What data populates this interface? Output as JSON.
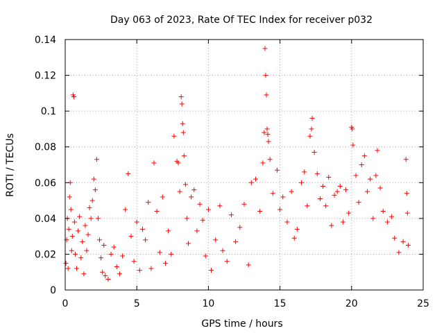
{
  "chart_data": {
    "type": "scatter",
    "title": "Day 063 of 2023, Rate Of TEC Index for receiver p032",
    "xlabel": "GPS time / hours",
    "ylabel": "ROTI / TECUs",
    "xlim": [
      0,
      25
    ],
    "ylim": [
      0,
      0.14
    ],
    "xticks": [
      0,
      5,
      10,
      15,
      20,
      25
    ],
    "yticks": [
      0,
      0.02,
      0.04,
      0.06,
      0.08,
      0.1,
      0.12,
      0.14
    ],
    "xtick_labels": [
      "0",
      "5",
      "10",
      "15",
      "20",
      "25"
    ],
    "ytick_labels": [
      "0",
      "0.02",
      "0.04",
      "0.06",
      "0.08",
      "0.1",
      "0.12",
      "0.14"
    ],
    "grid": true,
    "marker": "+",
    "series": [
      {
        "color": "#ff0000",
        "points": [
          [
            0.05,
            0.015
          ],
          [
            0.1,
            0.028
          ],
          [
            0.15,
            0.04
          ],
          [
            0.2,
            0.012
          ],
          [
            0.25,
            0.034
          ],
          [
            0.3,
            0.052
          ],
          [
            0.35,
            0.06
          ],
          [
            0.4,
            0.045
          ],
          [
            0.45,
            0.022
          ],
          [
            0.5,
            0.03
          ],
          [
            0.55,
            0.109
          ],
          [
            0.6,
            0.108
          ],
          [
            0.65,
            0.038
          ],
          [
            0.7,
            0.02
          ],
          [
            0.8,
            0.012
          ],
          [
            0.9,
            0.033
          ],
          [
            1.0,
            0.041
          ],
          [
            1.1,
            0.018
          ],
          [
            1.2,
            0.027
          ],
          [
            1.3,
            0.009
          ],
          [
            1.4,
            0.036
          ],
          [
            1.5,
            0.022
          ],
          [
            1.6,
            0.031
          ],
          [
            1.7,
            0.046
          ],
          [
            1.8,
            0.04
          ],
          [
            1.9,
            0.05
          ],
          [
            2.0,
            0.062
          ],
          [
            2.1,
            0.056
          ],
          [
            2.2,
            0.073
          ],
          [
            2.3,
            0.04
          ],
          [
            2.4,
            0.028
          ],
          [
            2.5,
            0.018
          ],
          [
            2.6,
            0.01
          ],
          [
            2.7,
            0.025
          ],
          [
            2.8,
            0.008
          ],
          [
            3.0,
            0.006
          ],
          [
            3.2,
            0.02
          ],
          [
            3.4,
            0.024
          ],
          [
            3.6,
            0.013
          ],
          [
            3.8,
            0.009
          ],
          [
            4.0,
            0.019
          ],
          [
            4.2,
            0.045
          ],
          [
            4.4,
            0.065
          ],
          [
            4.6,
            0.03
          ],
          [
            4.8,
            0.016
          ],
          [
            5.0,
            0.038
          ],
          [
            5.2,
            0.011
          ],
          [
            5.4,
            0.034
          ],
          [
            5.6,
            0.028
          ],
          [
            5.8,
            0.049
          ],
          [
            6.0,
            0.012
          ],
          [
            6.2,
            0.071
          ],
          [
            6.4,
            0.044
          ],
          [
            6.6,
            0.021
          ],
          [
            6.8,
            0.052
          ],
          [
            7.0,
            0.015
          ],
          [
            7.2,
            0.033
          ],
          [
            7.4,
            0.02
          ],
          [
            7.6,
            0.086
          ],
          [
            7.8,
            0.072
          ],
          [
            7.9,
            0.071
          ],
          [
            8.0,
            0.055
          ],
          [
            8.1,
            0.108
          ],
          [
            8.15,
            0.104
          ],
          [
            8.2,
            0.093
          ],
          [
            8.25,
            0.088
          ],
          [
            8.3,
            0.075
          ],
          [
            8.4,
            0.059
          ],
          [
            8.5,
            0.04
          ],
          [
            8.6,
            0.026
          ],
          [
            8.8,
            0.052
          ],
          [
            9.0,
            0.056
          ],
          [
            9.2,
            0.033
          ],
          [
            9.4,
            0.048
          ],
          [
            9.6,
            0.039
          ],
          [
            9.8,
            0.019
          ],
          [
            10.0,
            0.045
          ],
          [
            10.2,
            0.011
          ],
          [
            10.5,
            0.028
          ],
          [
            10.8,
            0.047
          ],
          [
            11.0,
            0.022
          ],
          [
            11.3,
            0.016
          ],
          [
            11.6,
            0.042
          ],
          [
            11.9,
            0.027
          ],
          [
            12.2,
            0.035
          ],
          [
            12.5,
            0.048
          ],
          [
            12.8,
            0.014
          ],
          [
            13.0,
            0.06
          ],
          [
            13.3,
            0.062
          ],
          [
            13.6,
            0.044
          ],
          [
            13.8,
            0.071
          ],
          [
            13.9,
            0.088
          ],
          [
            13.95,
            0.135
          ],
          [
            14.0,
            0.12
          ],
          [
            14.05,
            0.109
          ],
          [
            14.1,
            0.09
          ],
          [
            14.15,
            0.087
          ],
          [
            14.2,
            0.083
          ],
          [
            14.3,
            0.073
          ],
          [
            14.5,
            0.054
          ],
          [
            14.8,
            0.067
          ],
          [
            15.0,
            0.045
          ],
          [
            15.2,
            0.052
          ],
          [
            15.5,
            0.038
          ],
          [
            15.8,
            0.055
          ],
          [
            16.0,
            0.029
          ],
          [
            16.2,
            0.034
          ],
          [
            16.5,
            0.06
          ],
          [
            16.7,
            0.066
          ],
          [
            16.9,
            0.047
          ],
          [
            17.1,
            0.086
          ],
          [
            17.2,
            0.09
          ],
          [
            17.25,
            0.096
          ],
          [
            17.4,
            0.077
          ],
          [
            17.6,
            0.065
          ],
          [
            17.8,
            0.051
          ],
          [
            18.0,
            0.058
          ],
          [
            18.2,
            0.047
          ],
          [
            18.4,
            0.063
          ],
          [
            18.6,
            0.036
          ],
          [
            18.8,
            0.053
          ],
          [
            19.0,
            0.055
          ],
          [
            19.2,
            0.058
          ],
          [
            19.4,
            0.038
          ],
          [
            19.6,
            0.056
          ],
          [
            19.8,
            0.043
          ],
          [
            20.0,
            0.091
          ],
          [
            20.05,
            0.09
          ],
          [
            20.1,
            0.081
          ],
          [
            20.3,
            0.064
          ],
          [
            20.5,
            0.049
          ],
          [
            20.7,
            0.07
          ],
          [
            20.9,
            0.075
          ],
          [
            21.1,
            0.055
          ],
          [
            21.3,
            0.062
          ],
          [
            21.5,
            0.04
          ],
          [
            21.7,
            0.064
          ],
          [
            21.8,
            0.078
          ],
          [
            22.0,
            0.057
          ],
          [
            22.2,
            0.044
          ],
          [
            22.5,
            0.038
          ],
          [
            22.8,
            0.041
          ],
          [
            23.0,
            0.029
          ],
          [
            23.3,
            0.021
          ],
          [
            23.6,
            0.027
          ],
          [
            23.8,
            0.073
          ],
          [
            23.85,
            0.054
          ],
          [
            23.9,
            0.043
          ],
          [
            23.95,
            0.025
          ]
        ]
      }
    ]
  }
}
